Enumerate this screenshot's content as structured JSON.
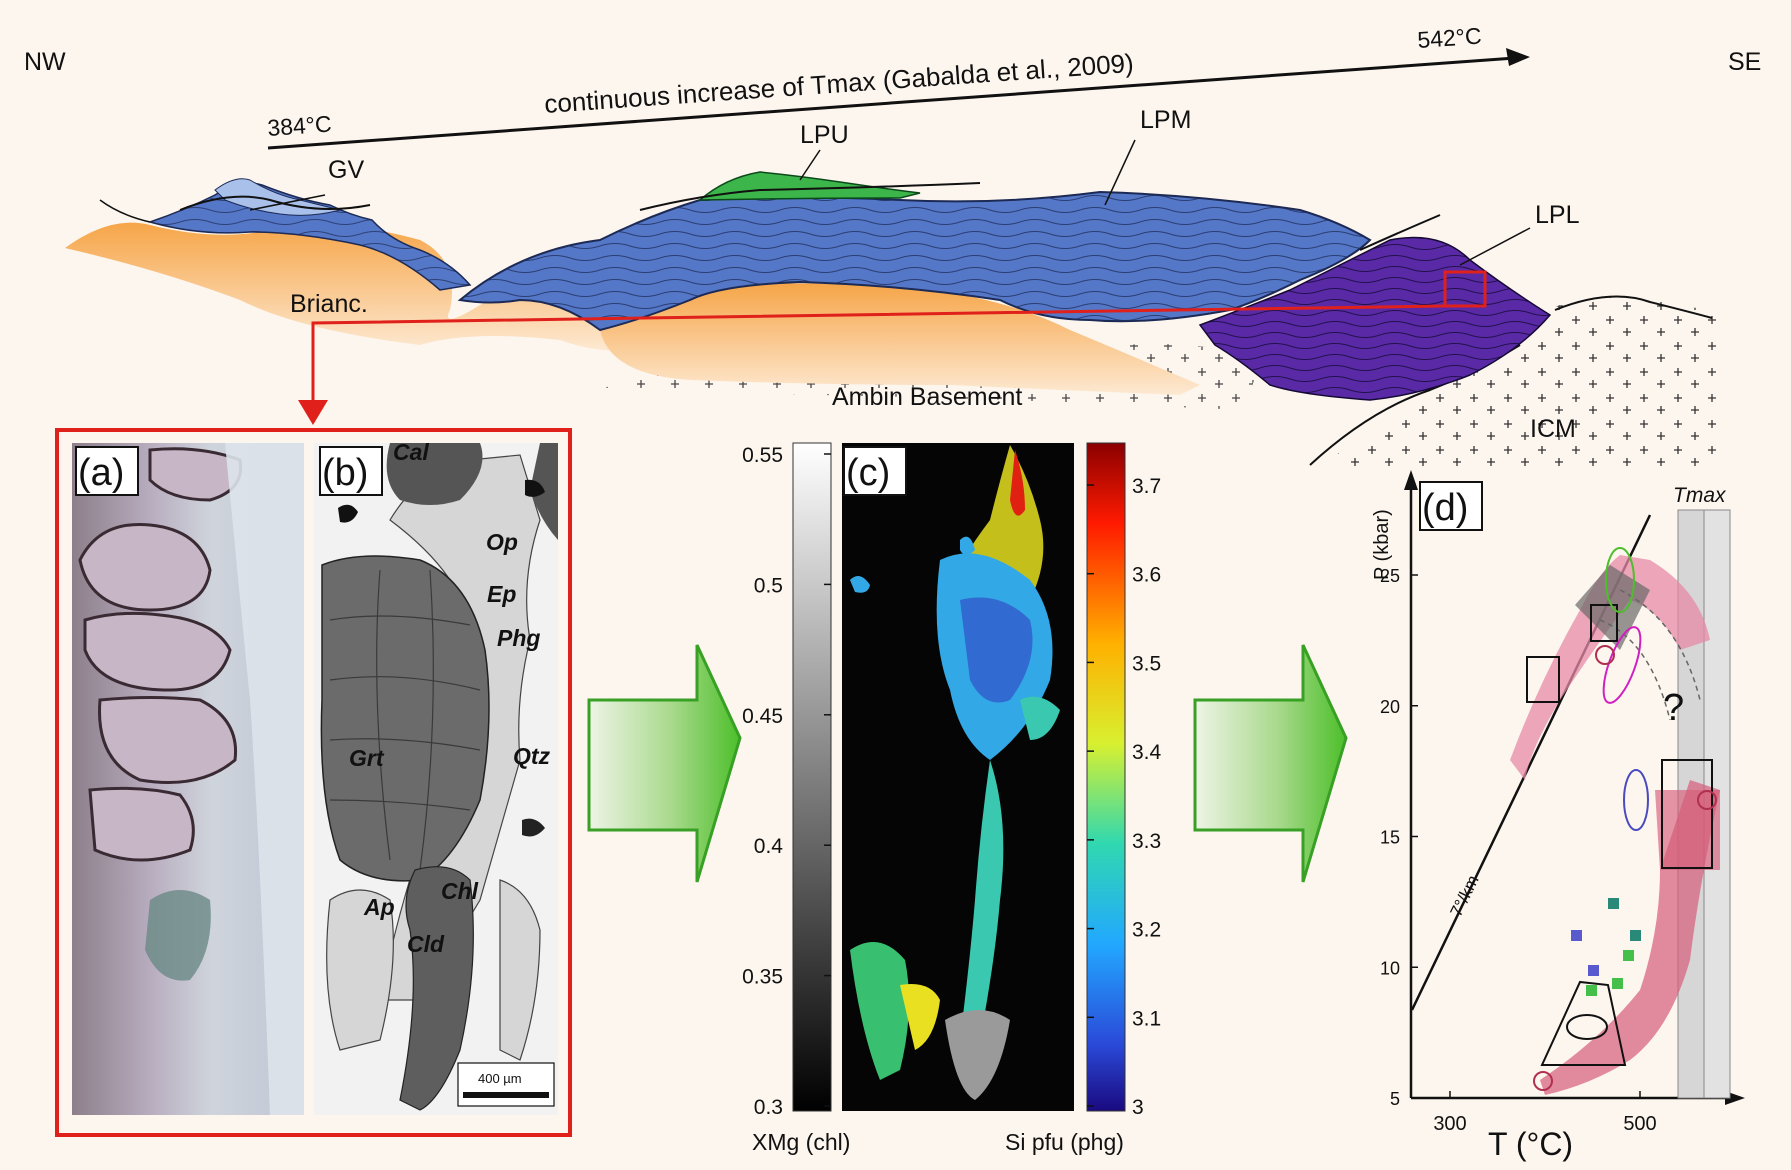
{
  "cross_section": {
    "dir_left": "NW",
    "dir_right": "SE",
    "temp_start": "384°C",
    "temp_end": "542°C",
    "trend_caption": "continuous increase of Tmax (Gabalda et al., 2009)",
    "units": {
      "gv": "GV",
      "lpu": "LPU",
      "lpm": "LPM",
      "lpl": "LPL",
      "brianc": "Brianc.",
      "ambin": "Ambin Basement",
      "icm": "ICM"
    }
  },
  "panel_a": {
    "label": "(a)"
  },
  "panel_b": {
    "label": "(b)",
    "minerals": {
      "cal": "Cal",
      "op": "Op",
      "ep": "Ep",
      "phg": "Phg",
      "grt": "Grt",
      "qtz": "Qtz",
      "ap": "Ap",
      "chl": "Chl",
      "cld": "Cld"
    },
    "scale_bar": "400 µm"
  },
  "panel_c": {
    "label": "(c)",
    "left_scale_label": "XMg (chl)",
    "left_ticks": [
      "0.55",
      "0.5",
      "0.45",
      "0.4",
      "0.35",
      "0.3"
    ],
    "right_scale_label": "Si pfu (phg)",
    "right_ticks": [
      "3.7",
      "3.6",
      "3.5",
      "3.4",
      "3.3",
      "3.2",
      "3.1",
      "3"
    ]
  },
  "panel_d": {
    "label": "(d)",
    "ylabel": "P (kbar)",
    "xlabel": "T (°C)",
    "y_ticks": [
      "25",
      "20",
      "15",
      "10",
      "5"
    ],
    "x_ticks": [
      "300",
      "500"
    ],
    "tmax_label": "Tmax",
    "gradient_label": "7°/km",
    "question_mark": "?"
  },
  "colors": {
    "highlight_red": "#e0201a",
    "arrow_green": "#5fc23a",
    "blue_unit": "#4e73c4",
    "purple_unit": "#5a2aa6",
    "orange_unit": "#f4b25e",
    "green_unit": "#3cb54a",
    "pink_field": "#e58aa7"
  }
}
